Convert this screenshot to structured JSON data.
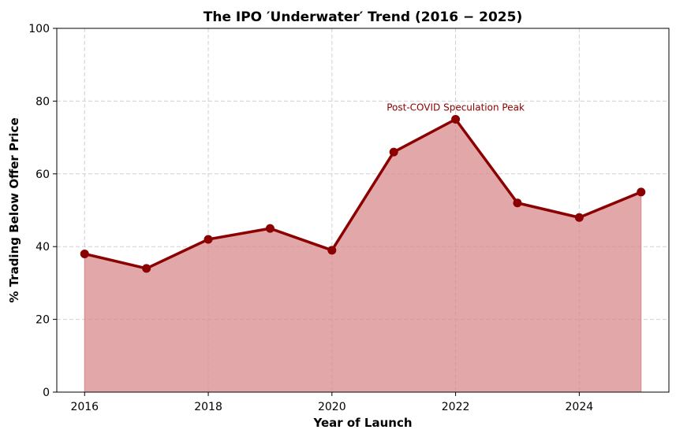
{
  "chart_data": {
    "type": "area",
    "title": "The IPO ′Underwater′ Trend (2016 − 2025)",
    "xlabel": "Year of Launch",
    "ylabel": "% Trading Below Offer Price",
    "x": [
      2016,
      2017,
      2018,
      2019,
      2020,
      2021,
      2022,
      2023,
      2024,
      2025
    ],
    "series": [
      {
        "name": "% Trading Below Offer Price",
        "values": [
          38,
          34,
          42,
          45,
          39,
          66,
          75,
          52,
          48,
          55
        ]
      }
    ],
    "xlim": [
      2015.55,
      2025.45
    ],
    "ylim": [
      0,
      100
    ],
    "x_ticks": [
      "2016",
      "2018",
      "2020",
      "2022",
      "2024"
    ],
    "x_tick_values": [
      2016,
      2018,
      2020,
      2022,
      2024
    ],
    "y_ticks": [
      "0",
      "20",
      "40",
      "60",
      "80",
      "100"
    ],
    "y_tick_values": [
      0,
      20,
      40,
      60,
      80,
      100
    ],
    "grid": true,
    "annotations": [
      {
        "text": "Post-COVID Speculation Peak",
        "x": 2022,
        "y": 78
      }
    ],
    "colors": {
      "line": "#8b0000",
      "fill": "#d88a8c",
      "annotation": "#8b0000",
      "grid": "#d0d0d0"
    }
  }
}
